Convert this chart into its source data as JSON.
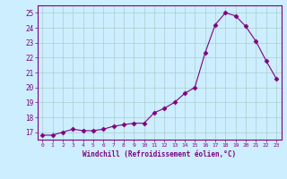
{
  "x": [
    0,
    1,
    2,
    3,
    4,
    5,
    6,
    7,
    8,
    9,
    10,
    11,
    12,
    13,
    14,
    15,
    16,
    17,
    18,
    19,
    20,
    21,
    22,
    23
  ],
  "y": [
    16.8,
    16.8,
    17.0,
    17.2,
    17.1,
    17.1,
    17.2,
    17.4,
    17.5,
    17.6,
    17.6,
    18.3,
    18.6,
    19.0,
    19.6,
    20.0,
    22.3,
    24.2,
    25.0,
    24.8,
    24.1,
    23.1,
    21.8,
    20.6
  ],
  "line_color": "#800080",
  "marker": "D",
  "marker_size": 2.5,
  "bg_color": "#cceeff",
  "grid_color": "#aacccc",
  "xlabel": "Windchill (Refroidissement éolien,°C)",
  "xlabel_color": "#800080",
  "tick_color": "#800080",
  "ylim": [
    16.5,
    25.5
  ],
  "yticks": [
    17,
    18,
    19,
    20,
    21,
    22,
    23,
    24,
    25
  ],
  "xticks": [
    0,
    1,
    2,
    3,
    4,
    5,
    6,
    7,
    8,
    9,
    10,
    11,
    12,
    13,
    14,
    15,
    16,
    17,
    18,
    19,
    20,
    21,
    22,
    23
  ]
}
